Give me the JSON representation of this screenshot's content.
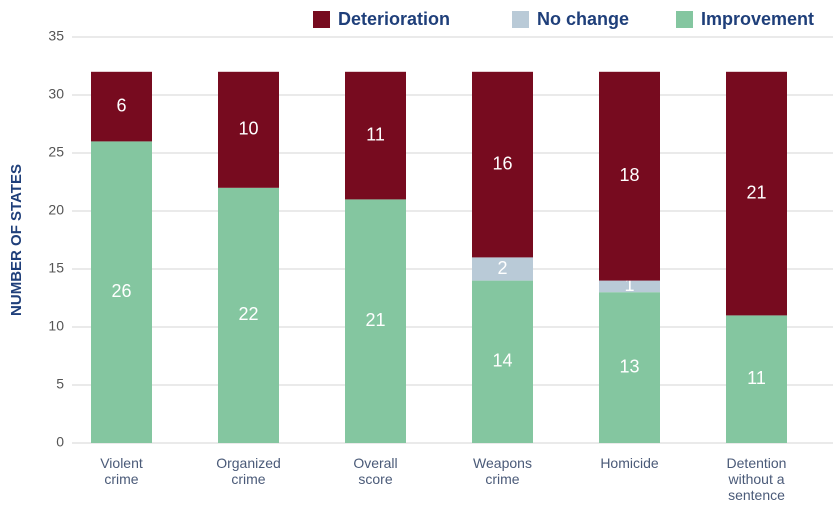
{
  "chart_data": {
    "type": "stacked_bar",
    "y_axis_label": "NUMBER OF STATES",
    "categories": [
      "Violent crime",
      "Organized crime",
      "Overall score",
      "Weapons crime",
      "Homicide",
      "Detention without a sentence"
    ],
    "series": [
      {
        "name": "Deterioration",
        "color": "#770b1f",
        "values": [
          6,
          10,
          11,
          16,
          18,
          21
        ]
      },
      {
        "name": "No change",
        "color": "#b9cad7",
        "values": [
          0,
          0,
          0,
          2,
          1,
          0
        ]
      },
      {
        "name": "Improvement",
        "color": "#84c6a0",
        "values": [
          26,
          22,
          21,
          14,
          13,
          11
        ]
      }
    ],
    "stack_order": "bottom-up from last series",
    "ylim": [
      0,
      35
    ],
    "yticks": [
      0,
      5,
      10,
      15,
      20,
      25,
      30,
      35
    ],
    "grid": true,
    "legend": "top-right"
  }
}
